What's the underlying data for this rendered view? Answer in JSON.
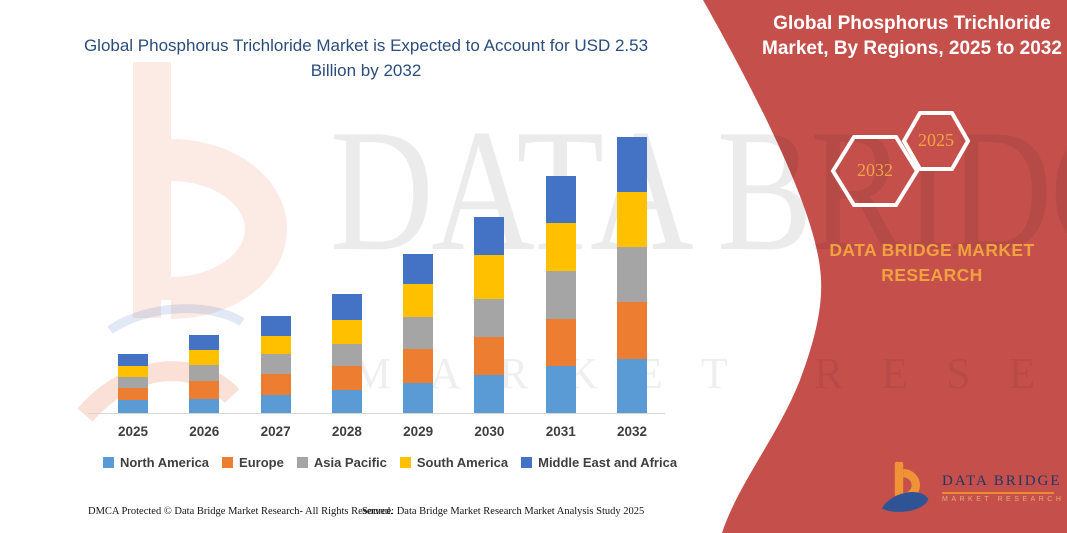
{
  "left": {
    "title": "Global Phosphorus Trichloride Market is Expected to Account for USD 2.53 Billion by 2032",
    "footer_dmca": "DMCA Protected © Data Bridge Market Research-  All Rights Reserved.",
    "footer_source": "Source: Data Bridge Market Research  Market Analysis Study 2025"
  },
  "right_panel": {
    "title": "Global Phosphorus Trichloride Market, By Regions, 2025 to 2032",
    "panel_color": "#c5504b",
    "accent_gold": "#efa23f",
    "hexagons": [
      {
        "label": "2032"
      },
      {
        "label": "2025"
      }
    ],
    "brand_line1": "DATA BRIDGE MARKET",
    "brand_line2": "RESEARCH",
    "logo": {
      "wordmark": "DATA BRIDGE",
      "subtext": "MARKET RESEARCH"
    }
  },
  "watermark": {
    "line1": "DATA BRIDGE",
    "line2": "MARKET RESEARCH"
  },
  "chart_data": {
    "type": "bar",
    "stacked": true,
    "title": "Global Phosphorus Trichloride Market is Expected to Account for USD 2.53 Billion by 2032",
    "unit": "USD Billion",
    "categories": [
      "2025",
      "2026",
      "2027",
      "2028",
      "2029",
      "2030",
      "2031",
      "2032"
    ],
    "series": [
      {
        "name": "North America",
        "color": "#5b9bd5",
        "values": [
          0.12,
          0.13,
          0.17,
          0.21,
          0.28,
          0.35,
          0.43,
          0.5
        ]
      },
      {
        "name": "Europe",
        "color": "#ed7d31",
        "values": [
          0.11,
          0.16,
          0.19,
          0.22,
          0.31,
          0.35,
          0.43,
          0.52
        ]
      },
      {
        "name": "Asia Pacific",
        "color": "#a5a5a5",
        "values": [
          0.1,
          0.15,
          0.18,
          0.2,
          0.29,
          0.35,
          0.44,
          0.5
        ]
      },
      {
        "name": "South America",
        "color": "#ffc000",
        "values": [
          0.1,
          0.14,
          0.17,
          0.22,
          0.3,
          0.4,
          0.44,
          0.51
        ]
      },
      {
        "name": "Middle East and Africa",
        "color": "#4472c4",
        "values": [
          0.11,
          0.14,
          0.18,
          0.24,
          0.28,
          0.35,
          0.43,
          0.5
        ]
      }
    ],
    "totals": [
      0.54,
      0.72,
      0.89,
      1.09,
      1.46,
      1.8,
      2.17,
      2.53
    ],
    "ylim": [
      0,
      2.6
    ],
    "grid": false,
    "legend_position": "bottom",
    "xlabel": "",
    "ylabel": ""
  }
}
